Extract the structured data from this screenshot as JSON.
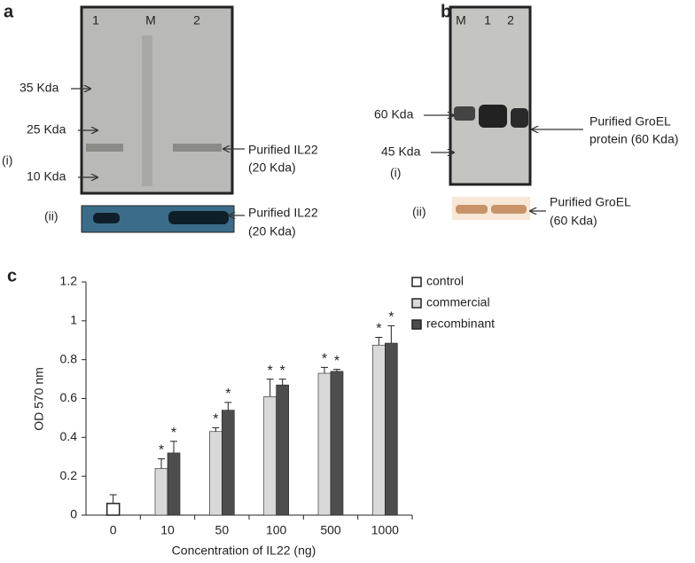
{
  "panel_a": {
    "label": "a",
    "lanes": [
      "1",
      "M",
      "2"
    ],
    "markers": [
      "35 Kda",
      "25 Kda",
      "10 Kda"
    ],
    "band_label": [
      "Purified IL22",
      "(20 Kda)"
    ],
    "sub_i": "(i)",
    "sub_ii": "(ii)",
    "blot_label": [
      "Purified IL22",
      "(20 Kda)"
    ]
  },
  "panel_b": {
    "label": "b",
    "lanes": [
      "M",
      "1",
      "2"
    ],
    "markers": [
      "60 Kda",
      "45 Kda"
    ],
    "band_label": [
      "Purified GroEL",
      "protein (60 Kda)"
    ],
    "sub_i": "(i)",
    "sub_ii": "(ii)",
    "blot_label": [
      "Purified GroEL",
      "(60 Kda)"
    ]
  },
  "chart_data": {
    "type": "bar",
    "label": "c",
    "x_label": "Concentration of IL22 (ng)",
    "y_label": "OD 570 nm",
    "categories": [
      "0",
      "10",
      "50",
      "100",
      "500",
      "1000"
    ],
    "series": [
      {
        "name": "control",
        "color": "#ffffff",
        "values": [
          0.06,
          null,
          null,
          null,
          null,
          null
        ],
        "errors": [
          0.045,
          null,
          null,
          null,
          null,
          null
        ],
        "significance": [
          null,
          null,
          null,
          null,
          null,
          null
        ]
      },
      {
        "name": "commercial",
        "color": "#d9d9d9",
        "values": [
          null,
          0.24,
          0.43,
          0.61,
          0.73,
          0.875
        ],
        "errors": [
          null,
          0.05,
          0.02,
          0.09,
          0.03,
          0.04
        ],
        "significance": [
          null,
          "*",
          "*",
          "*",
          "*",
          "*"
        ]
      },
      {
        "name": "recombinant",
        "color": "#4d4d4d",
        "values": [
          null,
          0.32,
          0.54,
          0.67,
          0.74,
          0.885
        ],
        "errors": [
          null,
          0.06,
          0.04,
          0.03,
          0.01,
          0.09
        ],
        "significance": [
          null,
          "*",
          "*",
          "*",
          "*",
          "*"
        ]
      }
    ],
    "ylim": [
      0,
      1.2
    ],
    "yticks": [
      0,
      0.2,
      0.4,
      0.6,
      0.8,
      1,
      1.2
    ],
    "legend": "top-right"
  }
}
